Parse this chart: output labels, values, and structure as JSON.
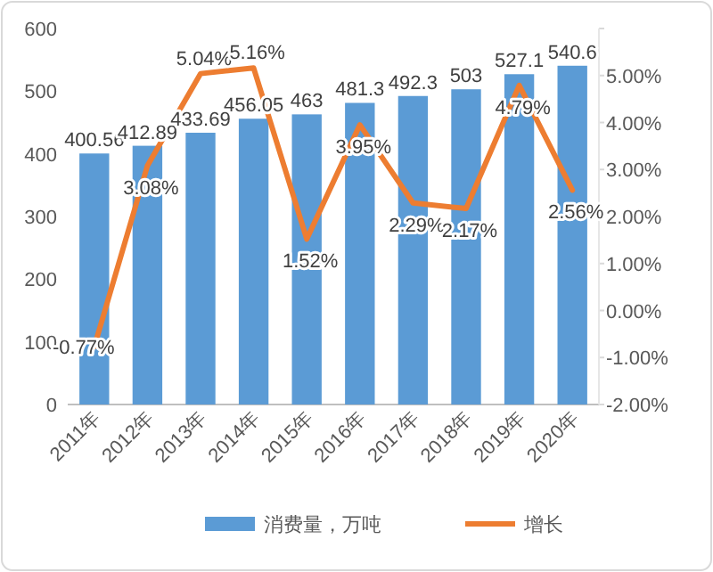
{
  "chart_data": {
    "type": "bar",
    "categories": [
      "2011年",
      "2012年",
      "2013年",
      "2014年",
      "2015年",
      "2016年",
      "2017年",
      "2018年",
      "2019年",
      "2020年"
    ],
    "series": [
      {
        "name": "消费量，万吨",
        "color": "#5b9bd5",
        "values": [
          400.56,
          412.89,
          433.69,
          456.05,
          463,
          481.3,
          492.3,
          503,
          527.1,
          540.6
        ],
        "value_labels": [
          "400.56",
          "412.89",
          "433.69",
          "456.05",
          "463",
          "481.3",
          "492.3",
          "503",
          "527.1",
          "540.6"
        ]
      },
      {
        "name": "增长",
        "type": "line",
        "axis": "y2",
        "color": "#ed7d31",
        "values": [
          -0.77,
          3.08,
          5.04,
          5.16,
          1.52,
          3.95,
          2.29,
          2.17,
          4.79,
          2.56
        ],
        "value_labels": [
          "-0.77%",
          "3.08%",
          "5.04%",
          "5.16%",
          "1.52%",
          "3.95%",
          "2.29%",
          "2.17%",
          "4.79%",
          "2.56%"
        ]
      }
    ],
    "ylim": [
      0,
      600
    ],
    "yticks": [
      0,
      100,
      200,
      300,
      400,
      500,
      600
    ],
    "y2lim": [
      -2,
      6
    ],
    "y2ticks": [
      {
        "value": -2,
        "label": "-2.00%"
      },
      {
        "value": -1,
        "label": "-1.00%"
      },
      {
        "value": 0,
        "label": "0.00%"
      },
      {
        "value": 1,
        "label": "1.00%"
      },
      {
        "value": 2,
        "label": "2.00%"
      },
      {
        "value": 3,
        "label": "3.00%"
      },
      {
        "value": 4,
        "label": "4.00%"
      },
      {
        "value": 5,
        "label": "5.00%"
      },
      {
        "value": 6,
        "label": null
      }
    ],
    "legend": "bottom",
    "grid": false,
    "marker": "none",
    "line_style": "solid"
  }
}
